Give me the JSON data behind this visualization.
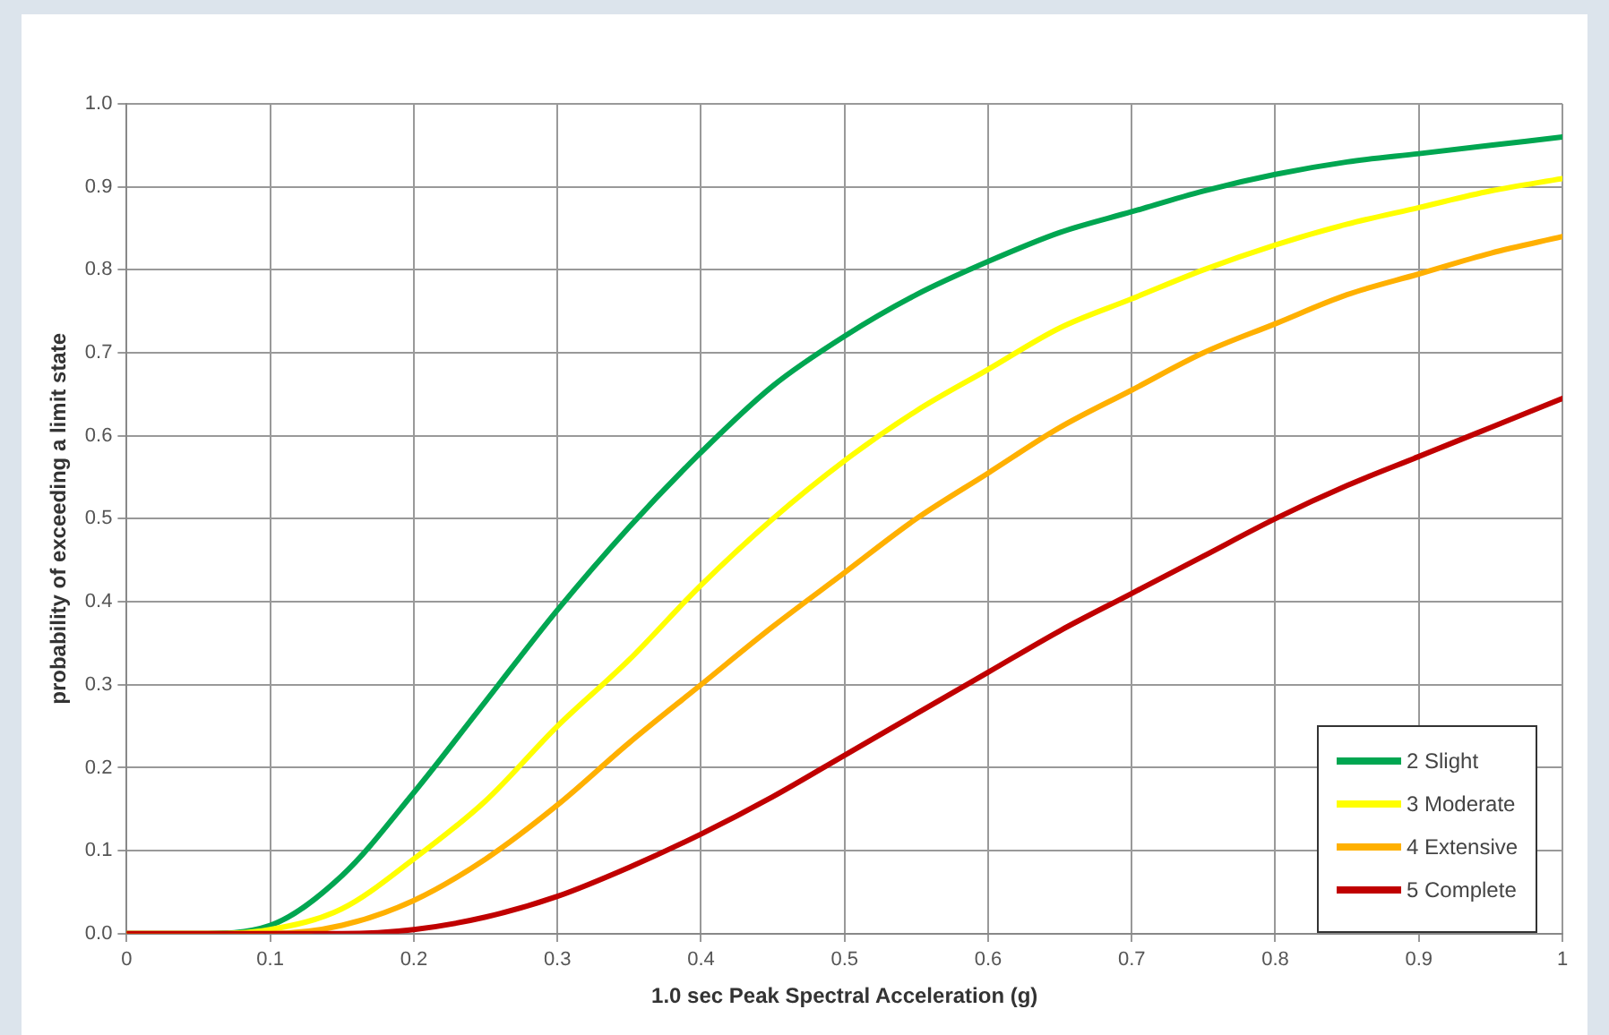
{
  "chart_data": {
    "type": "line",
    "xlabel": "1.0 sec Peak Spectral Acceleration (g)",
    "ylabel": "probability of exceeding a limit state",
    "x": [
      0,
      0.05,
      0.1,
      0.15,
      0.2,
      0.25,
      0.3,
      0.35,
      0.4,
      0.45,
      0.5,
      0.55,
      0.6,
      0.65,
      0.7,
      0.75,
      0.8,
      0.85,
      0.9,
      0.95,
      1
    ],
    "series": [
      {
        "name": "2 Slight",
        "color": "#00a651",
        "values": [
          0,
          0,
          0.01,
          0.07,
          0.17,
          0.28,
          0.39,
          0.49,
          0.58,
          0.66,
          0.72,
          0.77,
          0.81,
          0.845,
          0.87,
          0.895,
          0.915,
          0.93,
          0.94,
          0.95,
          0.96
        ]
      },
      {
        "name": "3 Moderate",
        "color": "#ffff00",
        "values": [
          0,
          0,
          0.005,
          0.03,
          0.09,
          0.16,
          0.25,
          0.33,
          0.42,
          0.5,
          0.57,
          0.63,
          0.68,
          0.73,
          0.765,
          0.8,
          0.83,
          0.855,
          0.875,
          0.895,
          0.91
        ]
      },
      {
        "name": "4 Extensive",
        "color": "#ffb000",
        "values": [
          0,
          0,
          0,
          0.01,
          0.04,
          0.09,
          0.155,
          0.23,
          0.3,
          0.37,
          0.435,
          0.5,
          0.555,
          0.61,
          0.655,
          0.7,
          0.735,
          0.77,
          0.795,
          0.82,
          0.84
        ]
      },
      {
        "name": "5 Complete",
        "color": "#c00000",
        "values": [
          0,
          0,
          0,
          0,
          0.005,
          0.02,
          0.045,
          0.08,
          0.12,
          0.165,
          0.215,
          0.265,
          0.315,
          0.365,
          0.41,
          0.455,
          0.5,
          0.54,
          0.575,
          0.61,
          0.645
        ]
      }
    ],
    "xlim": [
      0,
      1
    ],
    "xticks": [
      0,
      0.1,
      0.2,
      0.3,
      0.4,
      0.5,
      0.6,
      0.7,
      0.8,
      0.9,
      1
    ],
    "ylim": [
      0,
      1
    ],
    "yticks": [
      {
        "value": 0,
        "label": "0.0"
      },
      0.1,
      0.2,
      0.3,
      0.4,
      0.5,
      0.6,
      0.7,
      0.8,
      0.9,
      {
        "value": 1,
        "label": "1.0"
      }
    ],
    "grid": true,
    "legend": "bottom right",
    "marker": "none",
    "line_style": "solid"
  }
}
